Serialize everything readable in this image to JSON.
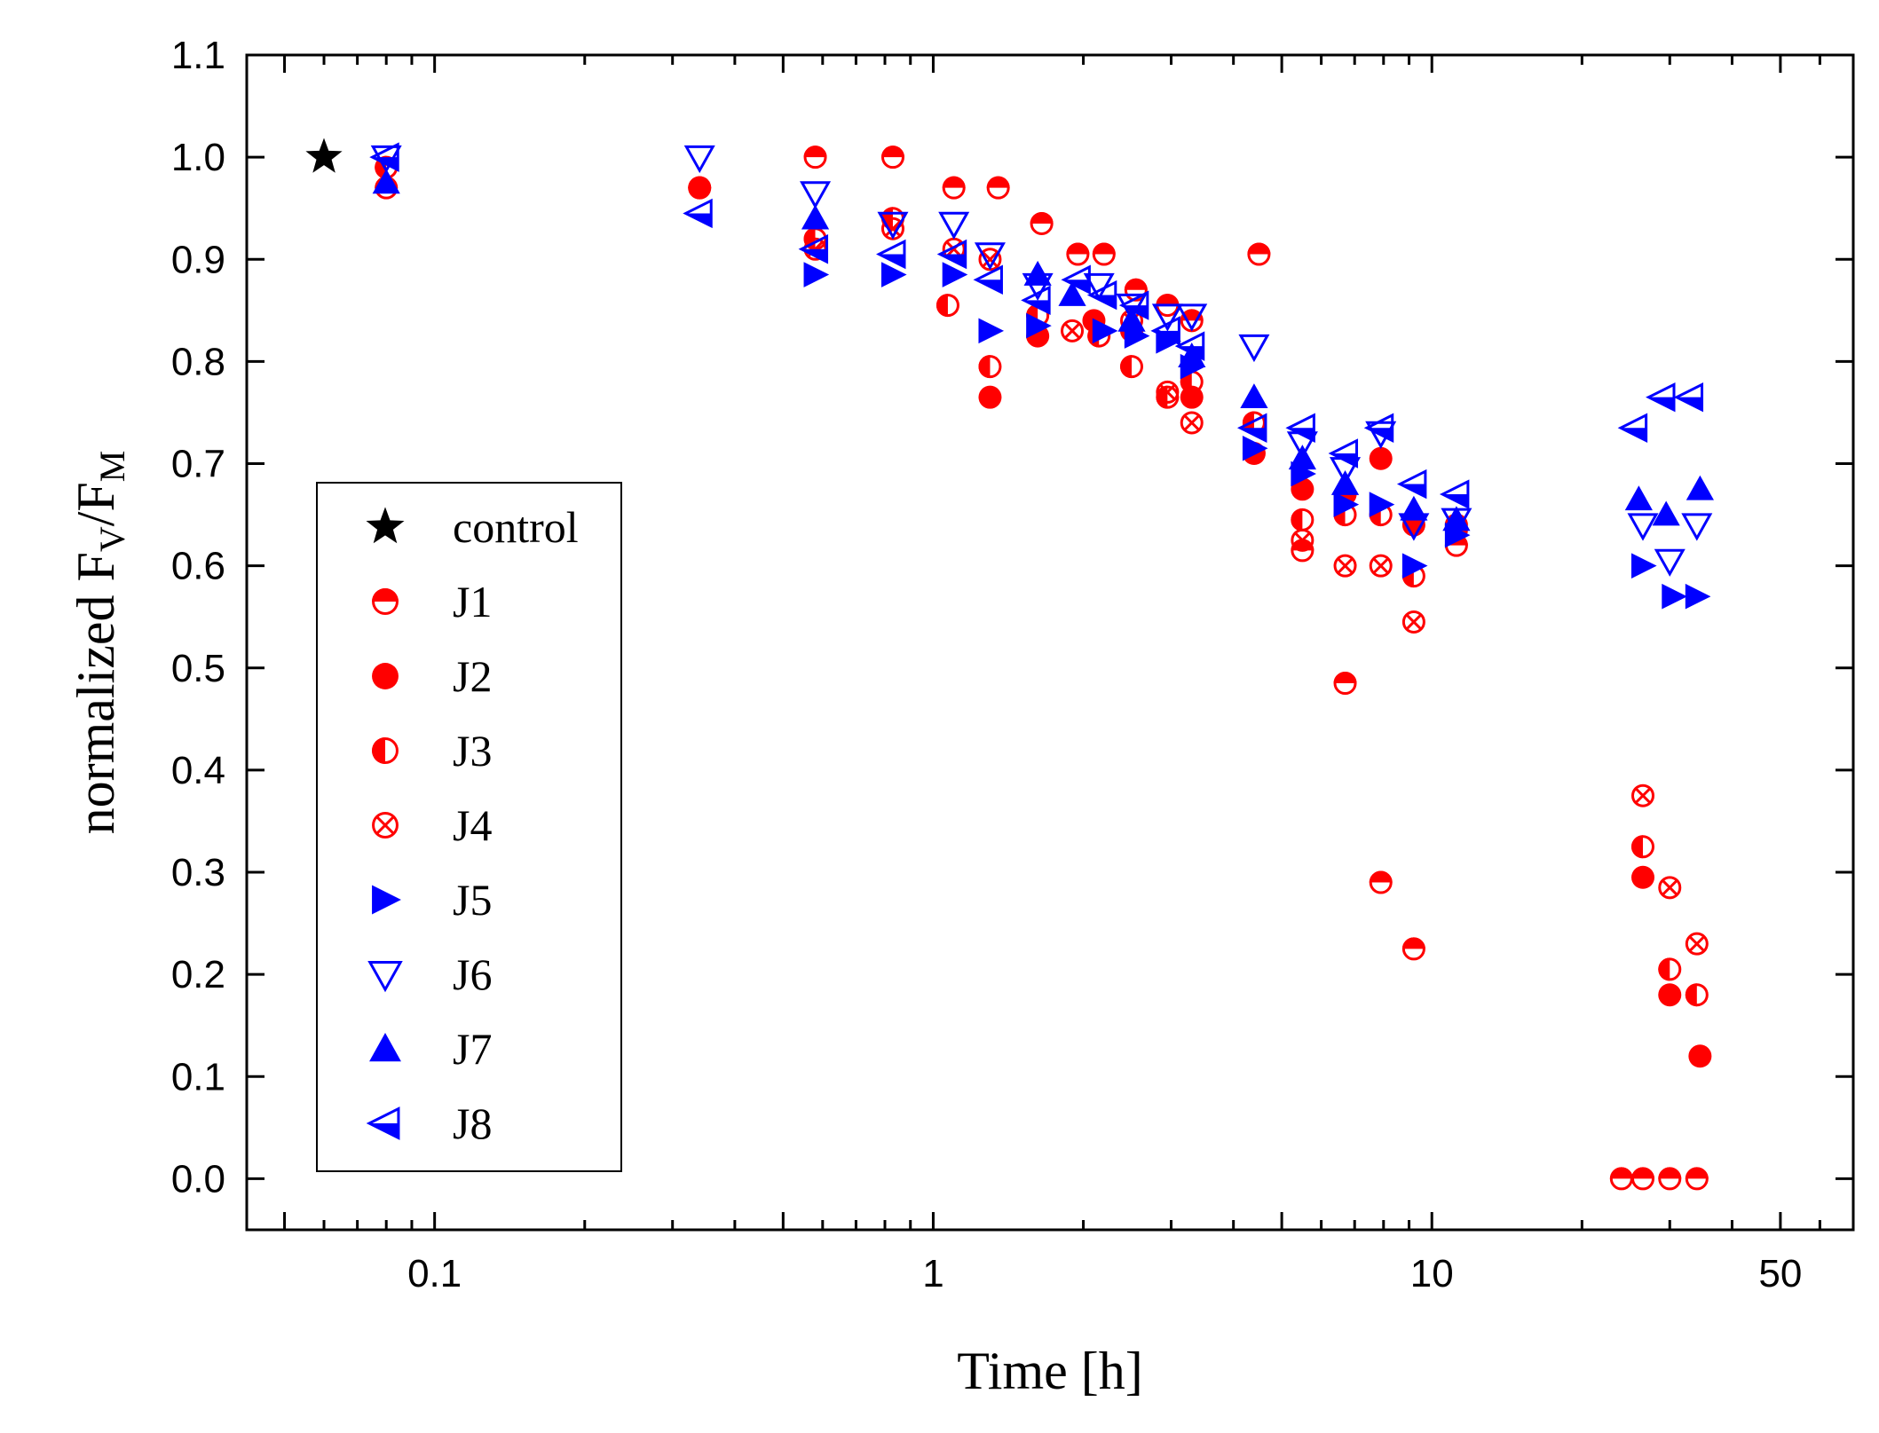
{
  "chart_data": {
    "type": "scatter",
    "xlabel": "Time [h]",
    "ylabel": {
      "base_left": "normalized F",
      "sub_left": "V",
      "slash": "/F",
      "sub_right": "M"
    },
    "x_scale": "log",
    "xlim": [
      0.042,
      70
    ],
    "ylim": [
      -0.05,
      1.1
    ],
    "x_ticks": [
      {
        "value": 0.1,
        "label": "0.1"
      },
      {
        "value": 1,
        "label": "1"
      },
      {
        "value": 10,
        "label": "10"
      },
      {
        "value": 50,
        "label": "50"
      }
    ],
    "y_ticks": [
      {
        "value": 0.0,
        "label": "0.0"
      },
      {
        "value": 0.1,
        "label": "0.1"
      },
      {
        "value": 0.2,
        "label": "0.2"
      },
      {
        "value": 0.3,
        "label": "0.3"
      },
      {
        "value": 0.4,
        "label": "0.4"
      },
      {
        "value": 0.5,
        "label": "0.5"
      },
      {
        "value": 0.6,
        "label": "0.6"
      },
      {
        "value": 0.7,
        "label": "0.7"
      },
      {
        "value": 0.8,
        "label": "0.8"
      },
      {
        "value": 0.9,
        "label": "0.9"
      },
      {
        "value": 1.0,
        "label": "1.0"
      },
      {
        "value": 1.1,
        "label": "1.1"
      }
    ],
    "grid": false,
    "legend_position": "center-left",
    "series": [
      {
        "name": "control",
        "marker": "star",
        "color": "#000000",
        "points": [
          [
            0.06,
            1.0
          ]
        ]
      },
      {
        "name": "J1",
        "marker": "circle-half-top",
        "color": "#ff0000",
        "points": [
          [
            0.08,
            0.97
          ],
          [
            0.34,
            0.97
          ],
          [
            0.58,
            1.0
          ],
          [
            0.83,
            1.0
          ],
          [
            1.1,
            0.97
          ],
          [
            1.35,
            0.97
          ],
          [
            1.65,
            0.935
          ],
          [
            1.95,
            0.905
          ],
          [
            2.2,
            0.905
          ],
          [
            2.55,
            0.87
          ],
          [
            2.95,
            0.855
          ],
          [
            3.3,
            0.84
          ],
          [
            4.5,
            0.905
          ],
          [
            5.5,
            0.615
          ],
          [
            6.7,
            0.485
          ],
          [
            7.9,
            0.29
          ],
          [
            9.2,
            0.225
          ],
          [
            11.2,
            0.62
          ],
          [
            24.0,
            0.0
          ],
          [
            26.5,
            0.0
          ],
          [
            30.0,
            0.0
          ],
          [
            34.0,
            0.0
          ]
        ]
      },
      {
        "name": "J2",
        "marker": "circle-filled",
        "color": "#ff0000",
        "points": [
          [
            0.34,
            0.97
          ],
          [
            1.3,
            0.765
          ],
          [
            1.62,
            0.825
          ],
          [
            2.1,
            0.84
          ],
          [
            2.5,
            0.83
          ],
          [
            3.3,
            0.765
          ],
          [
            4.4,
            0.71
          ],
          [
            5.5,
            0.675
          ],
          [
            6.7,
            0.67
          ],
          [
            7.9,
            0.705
          ],
          [
            9.2,
            0.64
          ],
          [
            11.2,
            0.635
          ],
          [
            26.5,
            0.295
          ],
          [
            30.0,
            0.18
          ],
          [
            34.5,
            0.12
          ]
        ]
      },
      {
        "name": "J3",
        "marker": "circle-half-left",
        "color": "#ff0000",
        "points": [
          [
            0.08,
            0.99
          ],
          [
            0.58,
            0.92
          ],
          [
            0.83,
            0.94
          ],
          [
            1.07,
            0.855
          ],
          [
            1.3,
            0.795
          ],
          [
            1.62,
            0.845
          ],
          [
            2.15,
            0.825
          ],
          [
            2.5,
            0.795
          ],
          [
            2.95,
            0.765
          ],
          [
            3.3,
            0.78
          ],
          [
            4.4,
            0.74
          ],
          [
            5.5,
            0.645
          ],
          [
            6.7,
            0.65
          ],
          [
            7.9,
            0.65
          ],
          [
            9.2,
            0.59
          ],
          [
            11.2,
            0.64
          ],
          [
            26.5,
            0.325
          ],
          [
            30.0,
            0.205
          ],
          [
            34.0,
            0.18
          ]
        ]
      },
      {
        "name": "J4",
        "marker": "circle-cross",
        "color": "#ff0000",
        "points": [
          [
            0.58,
            0.91
          ],
          [
            0.83,
            0.93
          ],
          [
            1.1,
            0.91
          ],
          [
            1.3,
            0.9
          ],
          [
            1.9,
            0.83
          ],
          [
            2.5,
            0.84
          ],
          [
            2.95,
            0.77
          ],
          [
            3.3,
            0.74
          ],
          [
            5.5,
            0.625
          ],
          [
            6.7,
            0.6
          ],
          [
            7.9,
            0.6
          ],
          [
            9.2,
            0.545
          ],
          [
            26.5,
            0.375
          ],
          [
            30.0,
            0.285
          ],
          [
            34.0,
            0.23
          ]
        ]
      },
      {
        "name": "J5",
        "marker": "triangle-right-filled",
        "color": "#0000ff",
        "points": [
          [
            0.58,
            0.885
          ],
          [
            0.83,
            0.885
          ],
          [
            1.1,
            0.885
          ],
          [
            1.3,
            0.83
          ],
          [
            1.62,
            0.835
          ],
          [
            2.2,
            0.83
          ],
          [
            2.55,
            0.825
          ],
          [
            2.95,
            0.82
          ],
          [
            3.3,
            0.795
          ],
          [
            4.4,
            0.715
          ],
          [
            5.5,
            0.69
          ],
          [
            6.7,
            0.66
          ],
          [
            7.9,
            0.66
          ],
          [
            9.2,
            0.6
          ],
          [
            11.2,
            0.63
          ],
          [
            26.5,
            0.6
          ],
          [
            30.5,
            0.57
          ],
          [
            34.0,
            0.57
          ]
        ]
      },
      {
        "name": "J6",
        "marker": "triangle-down-open",
        "color": "#0000ff",
        "points": [
          [
            0.08,
            1.0
          ],
          [
            0.34,
            1.0
          ],
          [
            0.58,
            0.965
          ],
          [
            0.83,
            0.935
          ],
          [
            1.1,
            0.935
          ],
          [
            1.3,
            0.905
          ],
          [
            1.62,
            0.875
          ],
          [
            2.15,
            0.875
          ],
          [
            2.5,
            0.855
          ],
          [
            2.95,
            0.845
          ],
          [
            3.3,
            0.845
          ],
          [
            4.4,
            0.815
          ],
          [
            5.5,
            0.72
          ],
          [
            6.7,
            0.695
          ],
          [
            7.9,
            0.73
          ],
          [
            9.2,
            0.64
          ],
          [
            11.2,
            0.645
          ],
          [
            26.5,
            0.64
          ],
          [
            30.0,
            0.605
          ],
          [
            34.0,
            0.64
          ]
        ]
      },
      {
        "name": "J7",
        "marker": "triangle-up-filled",
        "color": "#0000ff",
        "points": [
          [
            0.08,
            0.975
          ],
          [
            0.58,
            0.94
          ],
          [
            1.62,
            0.885
          ],
          [
            1.9,
            0.865
          ],
          [
            2.5,
            0.84
          ],
          [
            3.3,
            0.805
          ],
          [
            4.4,
            0.765
          ],
          [
            5.5,
            0.705
          ],
          [
            6.7,
            0.68
          ],
          [
            9.2,
            0.655
          ],
          [
            11.2,
            0.645
          ],
          [
            26.0,
            0.665
          ],
          [
            29.5,
            0.65
          ],
          [
            34.5,
            0.675
          ]
        ]
      },
      {
        "name": "J8",
        "marker": "triangle-left-half",
        "color": "#0000ff",
        "points": [
          [
            0.08,
            1.0
          ],
          [
            0.34,
            0.945
          ],
          [
            0.58,
            0.91
          ],
          [
            0.83,
            0.905
          ],
          [
            1.1,
            0.905
          ],
          [
            1.3,
            0.88
          ],
          [
            1.62,
            0.86
          ],
          [
            1.95,
            0.88
          ],
          [
            2.2,
            0.865
          ],
          [
            2.55,
            0.855
          ],
          [
            2.95,
            0.83
          ],
          [
            3.3,
            0.815
          ],
          [
            4.4,
            0.735
          ],
          [
            5.5,
            0.735
          ],
          [
            6.7,
            0.71
          ],
          [
            7.9,
            0.735
          ],
          [
            9.2,
            0.68
          ],
          [
            11.2,
            0.67
          ],
          [
            25.5,
            0.735
          ],
          [
            29.0,
            0.765
          ],
          [
            33.0,
            0.765
          ]
        ]
      }
    ]
  }
}
